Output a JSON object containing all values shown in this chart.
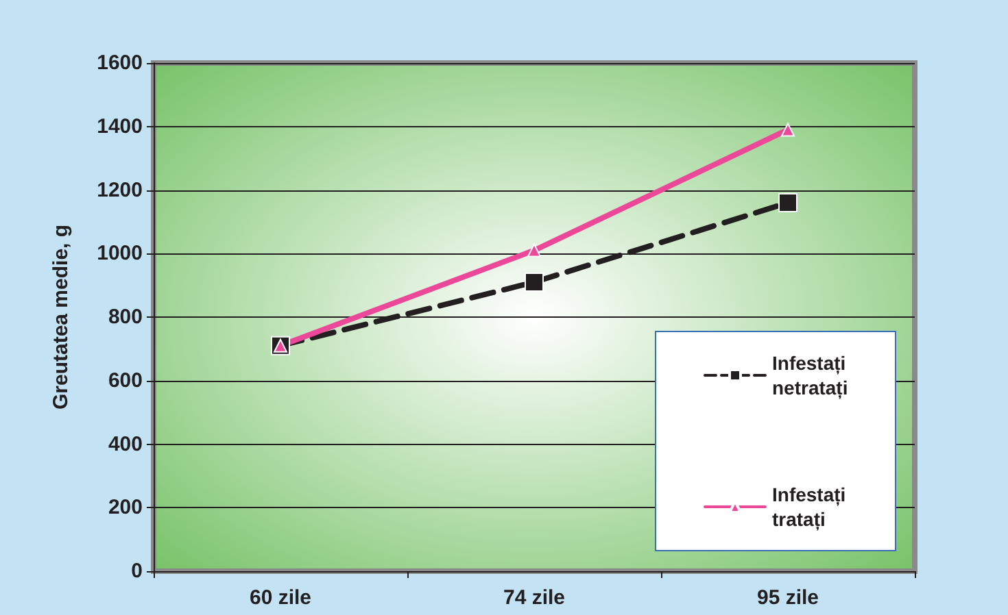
{
  "chart_data": {
    "type": "line",
    "ylabel": "Greutatea medie, g",
    "categories": [
      "60 zile",
      "74 zile",
      "95 zile"
    ],
    "series": [
      {
        "name": "Infestați netratați",
        "color": "#231f20",
        "values": [
          710,
          910,
          1160
        ],
        "marker": "square",
        "line_style": "dashed"
      },
      {
        "name": "Infestați tratați",
        "color": "#ec4899",
        "values": [
          710,
          1010,
          1390
        ],
        "marker": "triangle",
        "line_style": "solid"
      }
    ],
    "ylim": [
      0,
      1600
    ],
    "yticks": [
      0,
      200,
      400,
      600,
      800,
      1000,
      1200,
      1400,
      1600
    ],
    "grid": "y",
    "legend": "right"
  }
}
